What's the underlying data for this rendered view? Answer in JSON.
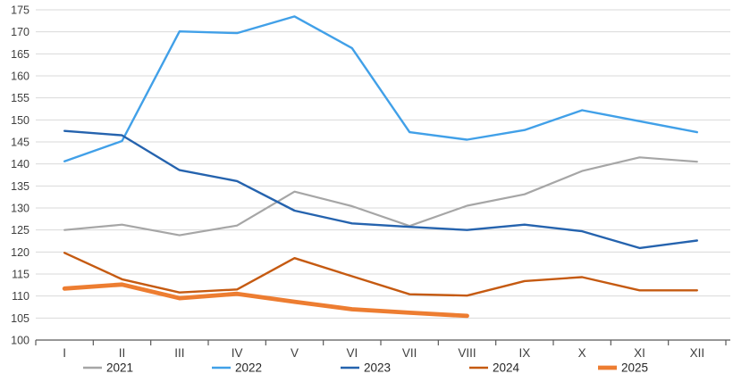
{
  "chart_data": {
    "type": "line",
    "title": "",
    "xlabel": "",
    "ylabel": "",
    "categories": [
      "I",
      "II",
      "III",
      "IV",
      "V",
      "VI",
      "VII",
      "VIII",
      "IX",
      "X",
      "XI",
      "XII"
    ],
    "series": [
      {
        "name": "2021",
        "color": "#A6A6A6",
        "width": 2.2,
        "values": [
          125.0,
          126.2,
          123.8,
          126.0,
          133.7,
          130.4,
          125.9,
          130.5,
          133.1,
          138.4,
          141.5,
          140.5
        ]
      },
      {
        "name": "2022",
        "color": "#41A0E8",
        "width": 2.4,
        "values": [
          140.6,
          145.2,
          170.1,
          169.7,
          173.5,
          166.3,
          147.2,
          145.5,
          147.7,
          152.2,
          149.7,
          147.2
        ]
      },
      {
        "name": "2023",
        "color": "#2563AE",
        "width": 2.4,
        "values": [
          147.5,
          146.5,
          138.6,
          136.1,
          129.4,
          126.5,
          125.7,
          125.0,
          126.2,
          124.7,
          120.9,
          122.6
        ]
      },
      {
        "name": "2024",
        "color": "#C55A11",
        "width": 2.4,
        "values": [
          119.8,
          113.8,
          110.8,
          111.5,
          118.6,
          114.5,
          110.4,
          110.1,
          113.4,
          114.3,
          111.3,
          111.3
        ]
      },
      {
        "name": "2025",
        "color": "#ED7D31",
        "width": 4.8,
        "values": [
          111.7,
          112.6,
          109.5,
          110.5,
          108.7,
          107.0,
          106.2,
          105.5,
          null,
          null,
          null,
          null
        ]
      }
    ],
    "ylim": [
      100,
      175
    ],
    "ytick_step": 5,
    "grid": "horizontal",
    "gridline_color": "#D9D9D9",
    "axis_line_color": "#595959",
    "tick_label_color": "#3F3F3F",
    "legend_position": "bottom",
    "legend_labels": [
      "2021",
      "2022",
      "2023",
      "2024",
      "2025"
    ]
  }
}
